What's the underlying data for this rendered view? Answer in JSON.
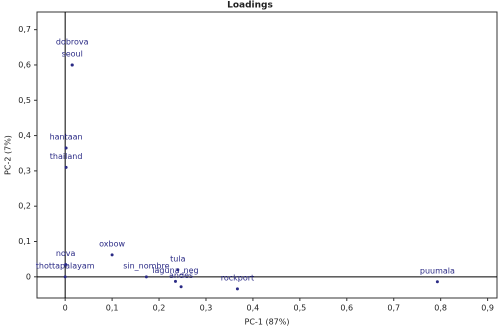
{
  "chart_data": {
    "type": "scatter",
    "title": "Loadings",
    "x_label": "PC-1 (87%)",
    "y_label": "PC-2 (7%)",
    "color": "#2a2a85",
    "labels": [
      "dobrova",
      "seoul",
      "hantaan",
      "thailand",
      "nova",
      "thottapalayam",
      "oxbow",
      "sin_nombre",
      "tula",
      "laguna_neg",
      "andes",
      "rockport",
      "puumala"
    ],
    "x": [
      0.015,
      0.015,
      0.002,
      0.002,
      0.001,
      0.0,
      0.1,
      0.173,
      0.24,
      0.235,
      0.247,
      0.367,
      0.793
    ],
    "values": [
      0.6,
      0.6,
      0.365,
      0.31,
      0.035,
      0.0,
      0.062,
      0.0,
      0.02,
      -0.013,
      -0.028,
      -0.034,
      -0.014
    ],
    "xlim": [
      -0.06,
      0.92
    ],
    "ylim": [
      -0.06,
      0.75
    ],
    "xticks": [
      0,
      {
        "value": 0.1,
        "label": "0,1"
      },
      {
        "value": 0.2,
        "label": "0,2"
      },
      {
        "value": 0.3,
        "label": "0,3"
      },
      {
        "value": 0.4,
        "label": "0,4"
      },
      {
        "value": 0.5,
        "label": "0,5"
      },
      {
        "value": 0.6,
        "label": "0,6"
      },
      {
        "value": 0.7,
        "label": "0,7"
      },
      {
        "value": 0.8,
        "label": "0,8"
      },
      {
        "value": 0.9,
        "label": "0,9"
      }
    ],
    "yticks": [
      0,
      {
        "value": 0.1,
        "label": "0,1"
      },
      {
        "value": 0.2,
        "label": "0,2"
      },
      {
        "value": 0.3,
        "label": "0,3"
      },
      {
        "value": 0.4,
        "label": "0,4"
      },
      {
        "value": 0.5,
        "label": "0,5"
      },
      {
        "value": 0.6,
        "label": "0,6"
      },
      {
        "value": 0.7,
        "label": "0,7"
      }
    ]
  }
}
